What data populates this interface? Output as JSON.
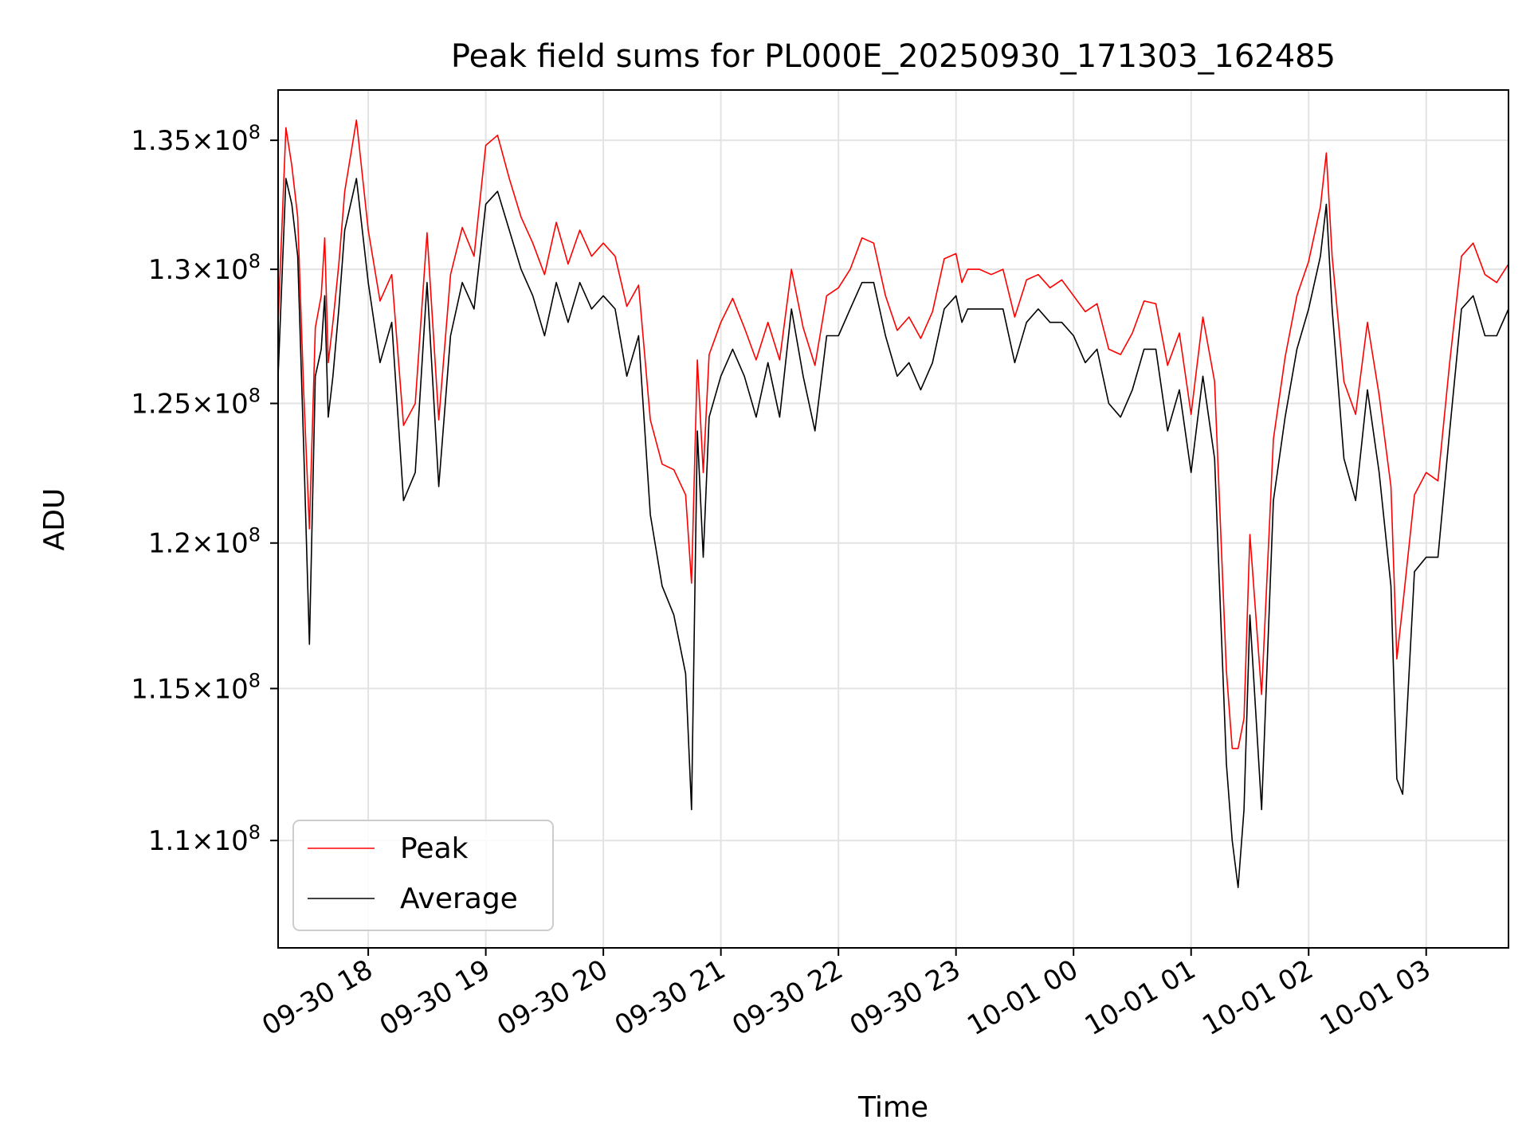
{
  "chart_data": {
    "type": "line",
    "title": "Peak field sums for PL000E_20250930_171303_162485",
    "xlabel": "Time",
    "ylabel": "ADU",
    "y_scale": "log",
    "grid": true,
    "legend_position": "lower-left",
    "xlim_hours_after_0930_17h": [
      0.2333,
      10.7
    ],
    "ylim": [
      106600000,
      137000000
    ],
    "x_ticks": [
      {
        "hours": 1,
        "label": "09-30 18"
      },
      {
        "hours": 2,
        "label": "09-30 19"
      },
      {
        "hours": 3,
        "label": "09-30 20"
      },
      {
        "hours": 4,
        "label": "09-30 21"
      },
      {
        "hours": 5,
        "label": "09-30 22"
      },
      {
        "hours": 6,
        "label": "09-30 23"
      },
      {
        "hours": 7,
        "label": "10-01 00"
      },
      {
        "hours": 8,
        "label": "10-01 01"
      },
      {
        "hours": 9,
        "label": "10-01 02"
      },
      {
        "hours": 10,
        "label": "10-01 03"
      }
    ],
    "y_ticks": [
      {
        "value": 110000000,
        "mantissa": "1.1",
        "exponent": "8"
      },
      {
        "value": 115000000,
        "mantissa": "1.15",
        "exponent": "8"
      },
      {
        "value": 120000000,
        "mantissa": "1.2",
        "exponent": "8"
      },
      {
        "value": 125000000,
        "mantissa": "1.25",
        "exponent": "8"
      },
      {
        "value": 130000000,
        "mantissa": "1.3",
        "exponent": "8"
      },
      {
        "value": 135000000,
        "mantissa": "1.35",
        "exponent": "8"
      }
    ],
    "series": [
      {
        "name": "Peak",
        "color": "#ff0000",
        "x_hours": [
          0.233,
          0.3,
          0.35,
          0.4,
          0.45,
          0.5,
          0.55,
          0.6,
          0.63,
          0.66,
          0.7,
          0.75,
          0.8,
          0.9,
          1.0,
          1.1,
          1.2,
          1.3,
          1.4,
          1.5,
          1.6,
          1.7,
          1.8,
          1.9,
          2.0,
          2.1,
          2.2,
          2.3,
          2.4,
          2.5,
          2.6,
          2.7,
          2.8,
          2.9,
          3.0,
          3.1,
          3.2,
          3.3,
          3.4,
          3.5,
          3.6,
          3.7,
          3.75,
          3.8,
          3.85,
          3.9,
          4.0,
          4.1,
          4.2,
          4.3,
          4.4,
          4.5,
          4.6,
          4.7,
          4.8,
          4.9,
          5.0,
          5.1,
          5.2,
          5.3,
          5.4,
          5.5,
          5.6,
          5.7,
          5.8,
          5.9,
          6.0,
          6.05,
          6.1,
          6.2,
          6.3,
          6.4,
          6.5,
          6.6,
          6.7,
          6.8,
          6.9,
          7.0,
          7.1,
          7.2,
          7.3,
          7.4,
          7.5,
          7.6,
          7.7,
          7.8,
          7.9,
          8.0,
          8.1,
          8.2,
          8.3,
          8.35,
          8.4,
          8.45,
          8.5,
          8.6,
          8.7,
          8.8,
          8.9,
          9.0,
          9.1,
          9.15,
          9.2,
          9.3,
          9.4,
          9.5,
          9.6,
          9.7,
          9.75,
          9.8,
          9.9,
          10.0,
          10.1,
          10.2,
          10.3,
          10.4,
          10.5,
          10.6,
          10.7
        ],
        "values": [
          128000000,
          135500000,
          134000000,
          132000000,
          125500000,
          120500000,
          127800000,
          129000000,
          131200000,
          126500000,
          128000000,
          130200000,
          133000000,
          135800000,
          131500000,
          128800000,
          129800000,
          124200000,
          125000000,
          131400000,
          124400000,
          129800000,
          131600000,
          130500000,
          134800000,
          135200000,
          133500000,
          132000000,
          131000000,
          129800000,
          131800000,
          130200000,
          131500000,
          130500000,
          131000000,
          130500000,
          128600000,
          129400000,
          124400000,
          122800000,
          122600000,
          121700000,
          118600000,
          126600000,
          122500000,
          126800000,
          128000000,
          128900000,
          127800000,
          126600000,
          128000000,
          126600000,
          130000000,
          127800000,
          126400000,
          129000000,
          129300000,
          130000000,
          131200000,
          131000000,
          129000000,
          127700000,
          128200000,
          127400000,
          128400000,
          130400000,
          130600000,
          129500000,
          130000000,
          130000000,
          129800000,
          130000000,
          128200000,
          129600000,
          129800000,
          129300000,
          129600000,
          129000000,
          128400000,
          128700000,
          127000000,
          126800000,
          127600000,
          128800000,
          128700000,
          126400000,
          127600000,
          124600000,
          128200000,
          125800000,
          115600000,
          113000000,
          113000000,
          114000000,
          120300000,
          114800000,
          123700000,
          126700000,
          129000000,
          130300000,
          132400000,
          134500000,
          130500000,
          125800000,
          124600000,
          128000000,
          125300000,
          122000000,
          116000000,
          117800000,
          121700000,
          122500000,
          122200000,
          126500000,
          130500000,
          131000000,
          129800000,
          129500000,
          130200000
        ],
        "values_are_upper_envelope_approx": true
      },
      {
        "name": "Average",
        "color": "#000000",
        "x_hours": [
          0.233,
          0.3,
          0.35,
          0.4,
          0.45,
          0.5,
          0.55,
          0.6,
          0.63,
          0.66,
          0.7,
          0.75,
          0.8,
          0.9,
          1.0,
          1.1,
          1.2,
          1.3,
          1.4,
          1.5,
          1.6,
          1.7,
          1.8,
          1.9,
          2.0,
          2.1,
          2.2,
          2.3,
          2.4,
          2.5,
          2.6,
          2.7,
          2.8,
          2.9,
          3.0,
          3.1,
          3.2,
          3.3,
          3.4,
          3.5,
          3.6,
          3.7,
          3.75,
          3.8,
          3.85,
          3.9,
          4.0,
          4.1,
          4.2,
          4.3,
          4.4,
          4.5,
          4.6,
          4.7,
          4.8,
          4.9,
          5.0,
          5.1,
          5.2,
          5.3,
          5.4,
          5.5,
          5.6,
          5.7,
          5.8,
          5.9,
          6.0,
          6.05,
          6.1,
          6.2,
          6.3,
          6.4,
          6.5,
          6.6,
          6.7,
          6.8,
          6.9,
          7.0,
          7.1,
          7.2,
          7.3,
          7.4,
          7.5,
          7.6,
          7.7,
          7.8,
          7.9,
          8.0,
          8.1,
          8.2,
          8.3,
          8.35,
          8.4,
          8.45,
          8.5,
          8.6,
          8.7,
          8.8,
          8.9,
          9.0,
          9.1,
          9.15,
          9.2,
          9.3,
          9.4,
          9.5,
          9.6,
          9.7,
          9.75,
          9.8,
          9.9,
          10.0,
          10.1,
          10.2,
          10.3,
          10.4,
          10.5,
          10.6,
          10.7
        ],
        "values": [
          126000000,
          133500000,
          132500000,
          130500000,
          123500000,
          116500000,
          126000000,
          127000000,
          129000000,
          124500000,
          126000000,
          128500000,
          131500000,
          133500000,
          129500000,
          126500000,
          128000000,
          121500000,
          122500000,
          129500000,
          122000000,
          127500000,
          129500000,
          128500000,
          132500000,
          133000000,
          131500000,
          130000000,
          129000000,
          127500000,
          129500000,
          128000000,
          129500000,
          128500000,
          129000000,
          128500000,
          126000000,
          127500000,
          121000000,
          118500000,
          117500000,
          115500000,
          111000000,
          124000000,
          119500000,
          124500000,
          126000000,
          127000000,
          126000000,
          124500000,
          126500000,
          124500000,
          128500000,
          126000000,
          124000000,
          127500000,
          127500000,
          128500000,
          129500000,
          129500000,
          127500000,
          126000000,
          126500000,
          125500000,
          126500000,
          128500000,
          129000000,
          128000000,
          128500000,
          128500000,
          128500000,
          128500000,
          126500000,
          128000000,
          128500000,
          128000000,
          128000000,
          127500000,
          126500000,
          127000000,
          125000000,
          124500000,
          125500000,
          127000000,
          127000000,
          124000000,
          125500000,
          122500000,
          126000000,
          123000000,
          112500000,
          110000000,
          108500000,
          111000000,
          117500000,
          111000000,
          121500000,
          124500000,
          127000000,
          128500000,
          130500000,
          132500000,
          128500000,
          123000000,
          121500000,
          125500000,
          122500000,
          118500000,
          112000000,
          111500000,
          119000000,
          119500000,
          119500000,
          124000000,
          128500000,
          129000000,
          127500000,
          127500000,
          128500000
        ],
        "values_are_approx": true
      }
    ]
  }
}
